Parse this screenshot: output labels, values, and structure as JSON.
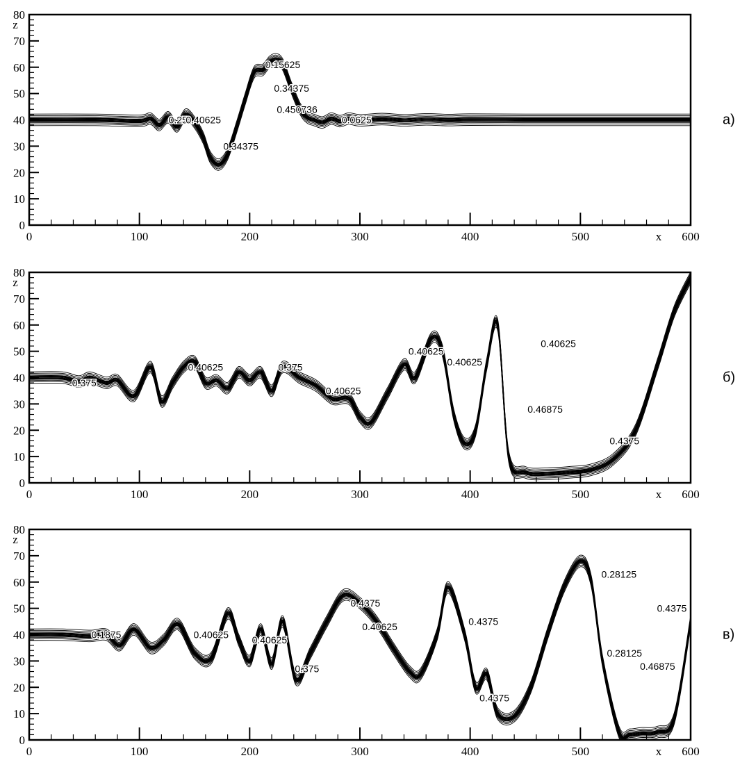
{
  "chart_data": [
    {
      "type": "contour",
      "panel_label": "а)",
      "xlabel": "x",
      "ylabel": "z",
      "xlim": [
        0,
        600
      ],
      "ylim": [
        0,
        80
      ],
      "x_ticks": [
        0,
        100,
        200,
        300,
        400,
        500,
        600
      ],
      "y_ticks": [
        0,
        10,
        20,
        30,
        40,
        50,
        60,
        70,
        80
      ],
      "grid": false,
      "contour_labels": [
        {
          "text": "0.15625",
          "x": 230,
          "y": 61
        },
        {
          "text": "0.34375",
          "x": 238,
          "y": 52
        },
        {
          "text": "0.450736",
          "x": 243,
          "y": 44
        },
        {
          "text": "0.25",
          "x": 135,
          "y": 40
        },
        {
          "text": "0.40625",
          "x": 158,
          "y": 40
        },
        {
          "text": "0.0625",
          "x": 297,
          "y": 40
        },
        {
          "text": "0.34375",
          "x": 192,
          "y": 30
        }
      ],
      "interface": {
        "x": [
          0,
          60,
          100,
          110,
          118,
          126,
          134,
          142,
          150,
          158,
          164,
          172,
          180,
          188,
          196,
          204,
          212,
          218,
          224,
          230,
          238,
          246,
          252,
          258,
          266,
          274,
          282,
          290,
          300,
          320,
          340,
          360,
          380,
          400,
          450,
          500,
          550,
          600
        ],
        "z": [
          40,
          40,
          39.6,
          40.5,
          38,
          41,
          37.5,
          42,
          39,
          33,
          26,
          23,
          27,
          37,
          48,
          58,
          59,
          62,
          63,
          61,
          52,
          44,
          41,
          40,
          39,
          40.5,
          39.5,
          40.5,
          39.8,
          40.3,
          39.8,
          40.2,
          39.9,
          40.1,
          40,
          40,
          40,
          40
        ]
      }
    },
    {
      "type": "contour",
      "panel_label": "б)",
      "xlabel": "x",
      "ylabel": "z",
      "xlim": [
        0,
        600
      ],
      "ylim": [
        0,
        80
      ],
      "x_ticks": [
        0,
        100,
        200,
        300,
        400,
        500,
        600
      ],
      "y_ticks": [
        0,
        10,
        20,
        30,
        40,
        50,
        60,
        70,
        80
      ],
      "grid": false,
      "contour_labels": [
        {
          "text": "0.375",
          "x": 50,
          "y": 38
        },
        {
          "text": "0.40625",
          "x": 160,
          "y": 44
        },
        {
          "text": "0.375",
          "x": 237,
          "y": 44
        },
        {
          "text": "0.40625",
          "x": 285,
          "y": 35
        },
        {
          "text": "0.40625",
          "x": 360,
          "y": 50
        },
        {
          "text": "0.40625",
          "x": 395,
          "y": 46
        },
        {
          "text": "0.40625",
          "x": 480,
          "y": 53
        },
        {
          "text": "0.46875",
          "x": 468,
          "y": 28
        },
        {
          "text": "0.4375",
          "x": 540,
          "y": 16
        }
      ],
      "interface": {
        "x": [
          0,
          30,
          45,
          55,
          70,
          80,
          95,
          110,
          120,
          130,
          140,
          150,
          160,
          170,
          180,
          190,
          200,
          210,
          220,
          230,
          245,
          260,
          275,
          290,
          300,
          310,
          325,
          340,
          350,
          365,
          375,
          385,
          395,
          405,
          415,
          425,
          435,
          450,
          470,
          490,
          510,
          530,
          550,
          570,
          585,
          600
        ],
        "z": [
          40,
          40,
          38.5,
          40,
          38,
          39,
          33,
          44,
          31,
          38,
          44,
          46,
          38,
          39,
          36,
          42,
          39,
          42,
          35,
          44,
          40,
          37,
          32,
          32,
          25,
          23,
          34,
          45,
          40,
          55,
          50,
          26,
          15,
          20,
          45,
          60,
          10,
          4,
          3.5,
          4,
          5,
          9,
          20,
          45,
          65,
          78
        ]
      }
    },
    {
      "type": "contour",
      "panel_label": "в)",
      "xlabel": "x",
      "ylabel": "z",
      "xlim": [
        0,
        600
      ],
      "ylim": [
        0,
        80
      ],
      "x_ticks": [
        0,
        100,
        200,
        300,
        400,
        500,
        600
      ],
      "y_ticks": [
        0,
        10,
        20,
        30,
        40,
        50,
        60,
        70,
        80
      ],
      "grid": false,
      "contour_labels": [
        {
          "text": "0.1875",
          "x": 70,
          "y": 40
        },
        {
          "text": "0.40625",
          "x": 165,
          "y": 40
        },
        {
          "text": "0.40625",
          "x": 218,
          "y": 38
        },
        {
          "text": "0.375",
          "x": 252,
          "y": 27
        },
        {
          "text": "0.4375",
          "x": 305,
          "y": 52
        },
        {
          "text": "0.40625",
          "x": 318,
          "y": 43
        },
        {
          "text": "0.4375",
          "x": 412,
          "y": 45
        },
        {
          "text": "0.4375",
          "x": 422,
          "y": 16
        },
        {
          "text": "0.28125",
          "x": 535,
          "y": 63
        },
        {
          "text": "0.28125",
          "x": 540,
          "y": 33
        },
        {
          "text": "0.4375",
          "x": 583,
          "y": 50
        },
        {
          "text": "0.46875",
          "x": 570,
          "y": 28
        }
      ],
      "interface": {
        "x": [
          0,
          30,
          55,
          70,
          82,
          95,
          110,
          122,
          135,
          150,
          165,
          180,
          190,
          200,
          210,
          220,
          230,
          242,
          255,
          270,
          285,
          300,
          315,
          330,
          345,
          355,
          370,
          380,
          395,
          405,
          415,
          425,
          440,
          455,
          470,
          485,
          500,
          510,
          520,
          535,
          545,
          555,
          570,
          585,
          600
        ],
        "z": [
          40,
          40,
          39.5,
          40,
          36,
          42,
          35,
          38,
          44,
          33,
          31,
          48,
          38,
          30,
          42,
          29,
          45,
          23,
          33,
          45,
          55,
          52,
          45,
          35,
          26,
          25,
          40,
          58,
          40,
          20,
          25,
          10,
          9,
          20,
          40,
          58,
          68,
          60,
          30,
          3,
          2,
          2.5,
          3,
          8,
          45
        ]
      }
    }
  ]
}
